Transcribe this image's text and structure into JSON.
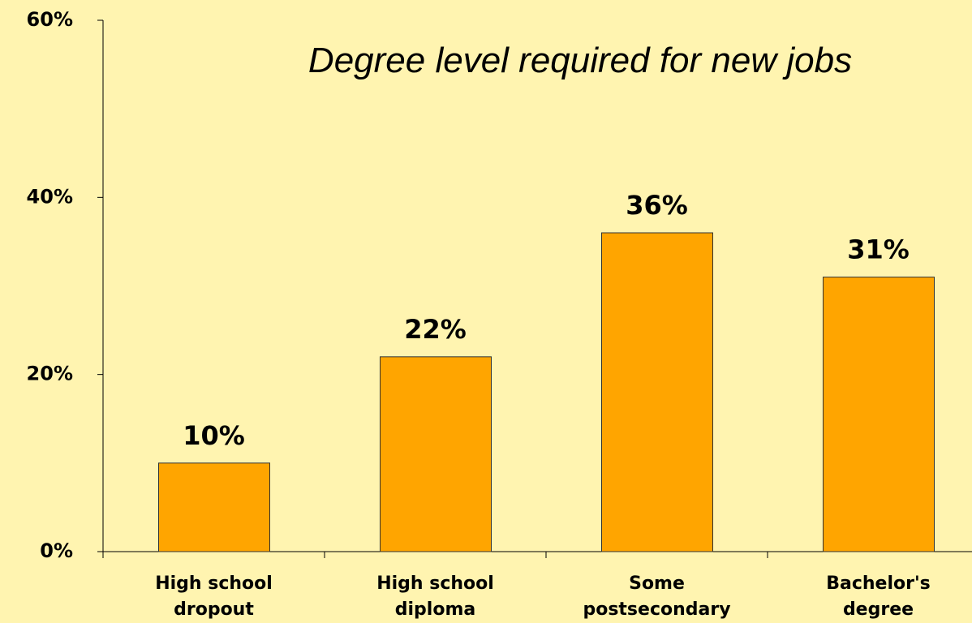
{
  "chart_data": {
    "type": "bar",
    "title": "Degree level required for new jobs",
    "categories": [
      "High school\ndropout",
      "High school\ndiploma",
      "Some\npostsecondary",
      "Bachelor's\ndegree"
    ],
    "values": [
      10,
      22,
      36,
      31
    ],
    "value_labels": [
      "10%",
      "22%",
      "36%",
      "31%"
    ],
    "color": "#FFA500",
    "ylim": [
      0,
      60
    ],
    "yticks": [
      {
        "value": 0,
        "label": "0%"
      },
      {
        "value": 20,
        "label": "20%"
      },
      {
        "value": 40,
        "label": "40%"
      },
      {
        "value": 60,
        "label": "60%"
      }
    ],
    "grid": false
  }
}
